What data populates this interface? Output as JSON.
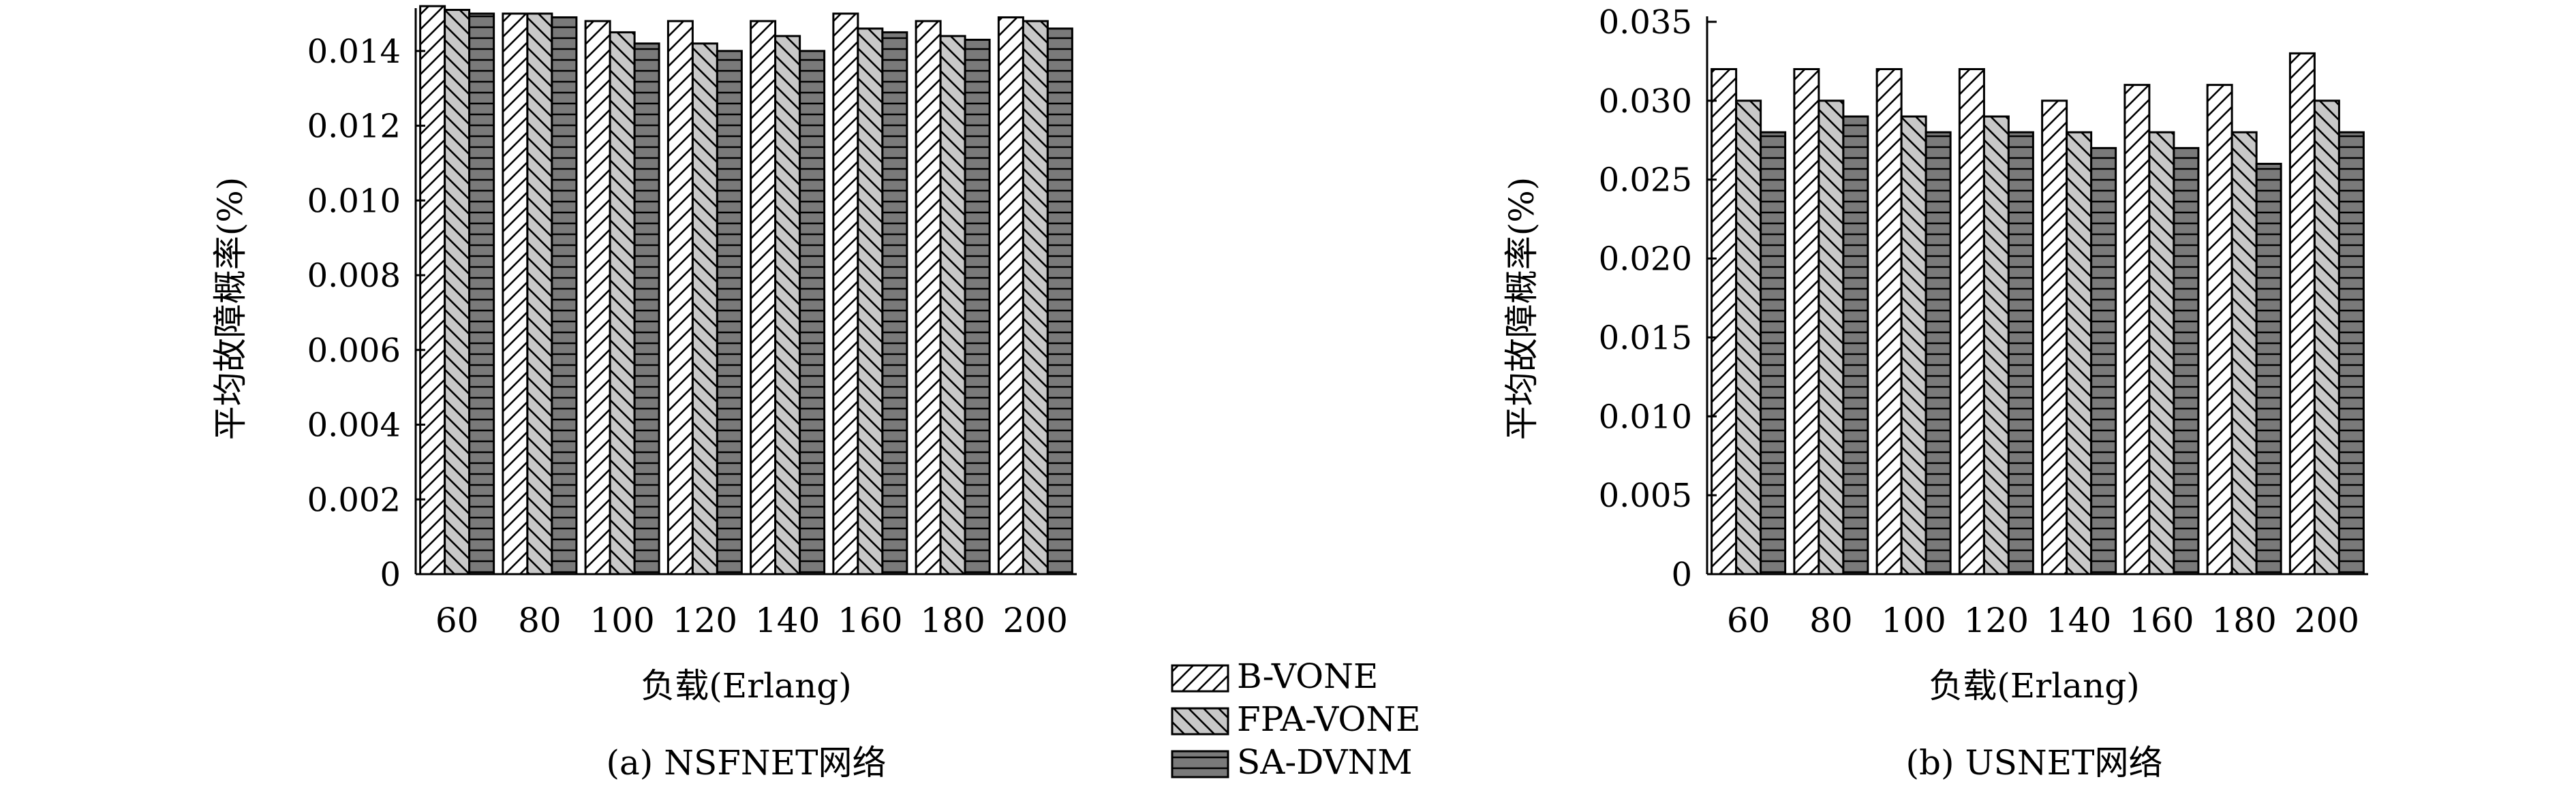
{
  "chart_data": [
    {
      "type": "bar",
      "ylabel": "平均故障概率(%)",
      "xlabel": "负载(Erlang)",
      "caption": "(a) NSFNET网络",
      "categories": [
        "60",
        "80",
        "100",
        "120",
        "140",
        "160",
        "180",
        "200"
      ],
      "ylim": [
        0,
        0.015
      ],
      "yticks": [
        "0",
        "0.002",
        "0.004",
        "0.006",
        "0.008",
        "0.010",
        "0.012",
        "0.014"
      ],
      "ytick_values": [
        0,
        0.002,
        0.004,
        0.006,
        0.008,
        0.01,
        0.012,
        0.014
      ],
      "series": [
        {
          "name": "B-VONE",
          "values": [
            0.0152,
            0.015,
            0.0148,
            0.0148,
            0.0148,
            0.015,
            0.0148,
            0.0149
          ]
        },
        {
          "name": "FPA-VONE",
          "values": [
            0.0151,
            0.015,
            0.0145,
            0.0142,
            0.0144,
            0.0146,
            0.0144,
            0.0148
          ]
        },
        {
          "name": "SA-DVNM",
          "values": [
            0.015,
            0.0149,
            0.0142,
            0.014,
            0.014,
            0.0145,
            0.0143,
            0.0146
          ]
        }
      ]
    },
    {
      "type": "bar",
      "ylabel": "平均故障概率(%)",
      "xlabel": "负载(Erlang)",
      "caption": "(b) USNET网络",
      "categories": [
        "60",
        "80",
        "100",
        "120",
        "140",
        "160",
        "180",
        "200"
      ],
      "ylim": [
        0,
        0.035
      ],
      "yticks": [
        "0",
        "0.005",
        "0.010",
        "0.015",
        "0.020",
        "0.025",
        "0.030",
        "0.035"
      ],
      "ytick_values": [
        0,
        0.005,
        0.01,
        0.015,
        0.02,
        0.025,
        0.03,
        0.035
      ],
      "series": [
        {
          "name": "B-VONE",
          "values": [
            0.032,
            0.032,
            0.032,
            0.032,
            0.03,
            0.031,
            0.031,
            0.033
          ]
        },
        {
          "name": "FPA-VONE",
          "values": [
            0.03,
            0.03,
            0.029,
            0.029,
            0.028,
            0.028,
            0.028,
            0.03
          ]
        },
        {
          "name": "SA-DVNM",
          "values": [
            0.028,
            0.029,
            0.028,
            0.028,
            0.027,
            0.027,
            0.026,
            0.028
          ]
        }
      ]
    }
  ],
  "legend": {
    "position": "bottom-center",
    "items": [
      "B-VONE",
      "FPA-VONE",
      "SA-DVNM"
    ]
  },
  "colors": {
    "B-VONE": "#ffffff",
    "FPA-VONE": "#c8c8c8",
    "SA-DVNM": "#7a7a7a"
  }
}
